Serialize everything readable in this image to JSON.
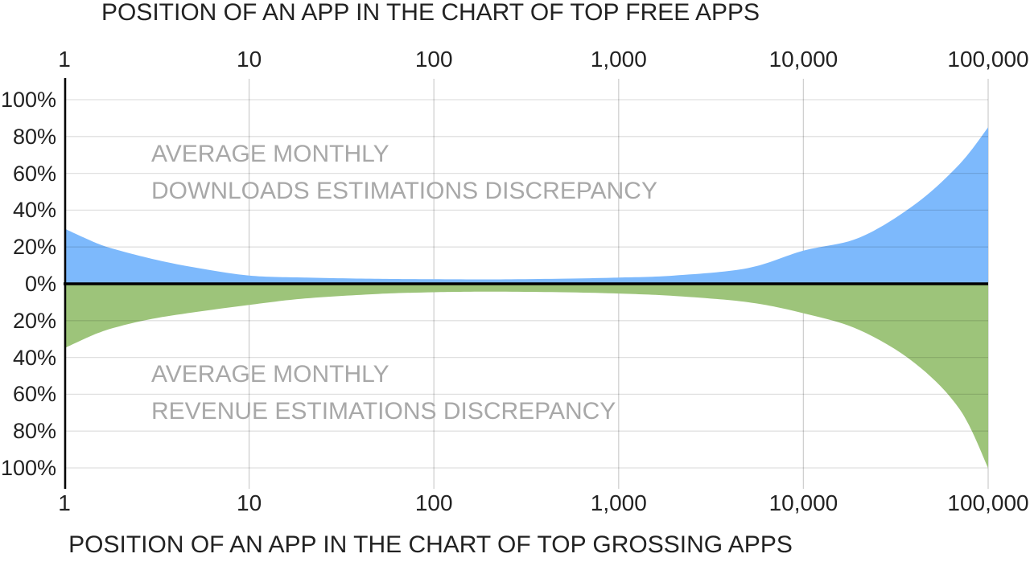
{
  "chart_data": {
    "type": "area",
    "x_scale": "log",
    "grid": true,
    "top_axis": {
      "title": "POSITION OF AN APP IN THE CHART OF TOP FREE APPS",
      "tick_labels": [
        "1",
        "10",
        "100",
        "1,000",
        "10,000",
        "100,000"
      ],
      "tick_values": [
        1,
        10,
        100,
        1000,
        10000,
        100000
      ],
      "range": [
        1,
        100000
      ]
    },
    "bottom_axis": {
      "title": "POSITION OF AN APP IN THE CHART OF TOP GROSSING APPS",
      "tick_labels": [
        "1",
        "10",
        "100",
        "1,000",
        "10,000",
        "100,000"
      ],
      "tick_values": [
        1,
        10,
        100,
        1000,
        10000,
        100000
      ],
      "range": [
        1,
        100000
      ]
    },
    "y_axis": {
      "unit": "%",
      "tick_labels": [
        "100%",
        "80%",
        "60%",
        "40%",
        "20%",
        "0%",
        "20%",
        "40%",
        "60%",
        "80%",
        "100%"
      ],
      "tick_values": [
        100,
        80,
        60,
        40,
        20,
        0,
        -20,
        -40,
        -60,
        -80,
        -100
      ],
      "range_pct": [
        -100,
        100
      ]
    },
    "series": [
      {
        "name": "Average monthly downloads estimations discrepancy",
        "label_lines": [
          "AVERAGE MONTHLY",
          "DOWNLOADS ESTIMATIONS DISCREPANCY"
        ],
        "side": "above",
        "color": "#7db9fc",
        "x": [
          1,
          1.5,
          2,
          3,
          5,
          10,
          20,
          50,
          100,
          200,
          500,
          1000,
          2000,
          5000,
          10000,
          20000,
          40000,
          70000,
          100000
        ],
        "values_pct": [
          30,
          22,
          18,
          13.5,
          9,
          4.5,
          3.4,
          2.7,
          2.5,
          2.4,
          2.8,
          3.4,
          4.5,
          8.5,
          18,
          25,
          43,
          65,
          85
        ]
      },
      {
        "name": "Average monthly revenue estimations discrepancy",
        "label_lines": [
          "AVERAGE MONTHLY",
          "REVENUE ESTIMATIONS DISCREPANCY"
        ],
        "side": "below",
        "color": "#9dc47a",
        "x": [
          1,
          1.5,
          2,
          3,
          5,
          10,
          20,
          50,
          100,
          200,
          500,
          1000,
          2000,
          5000,
          10000,
          20000,
          40000,
          70000,
          100000
        ],
        "values_pct": [
          35,
          27,
          23,
          19,
          15.5,
          11.5,
          8,
          5.5,
          4.6,
          4.3,
          4.6,
          5.3,
          6.6,
          10,
          16,
          25,
          43,
          68,
          100
        ]
      }
    ],
    "colors": {
      "background": "#ffffff",
      "title_text": "#222222",
      "tick_text": "#222222",
      "watermark_text": "#a8a8a8",
      "grid_vertical": "#d0d0d0",
      "grid_horizontal": "rgba(0,0,0,0.12)",
      "zero_line": "#000000",
      "axis_line": "#000000"
    }
  }
}
